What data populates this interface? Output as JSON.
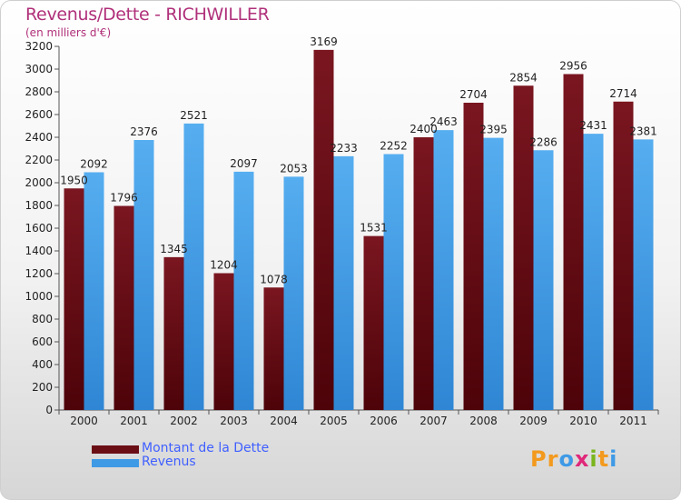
{
  "header": {
    "title": "Revenus/Dette - RICHWILLER",
    "subtitle": "(en milliers d'€)"
  },
  "colors": {
    "dette": "#6b0d15",
    "revenus": "#3f9ae6",
    "title": "#b0307a",
    "legend_text": "#4060ff"
  },
  "legend": {
    "items": [
      {
        "label": "Montant de la Dette",
        "color": "#6b0d15"
      },
      {
        "label": "Revenus",
        "color": "#3f9ae6"
      }
    ]
  },
  "logo": {
    "text": "Proxiti",
    "letter_colors": [
      "#f39a1e",
      "#f39a1e",
      "#3f9ae6",
      "#e0287a",
      "#7ab51d",
      "#f39a1e",
      "#3f9ae6"
    ]
  },
  "chart_data": {
    "type": "bar",
    "categories": [
      "2000",
      "2001",
      "2002",
      "2003",
      "2004",
      "2005",
      "2006",
      "2007",
      "2008",
      "2009",
      "2010",
      "2011"
    ],
    "series": [
      {
        "name": "Montant de la Dette",
        "values": [
          1950,
          1796,
          1345,
          1204,
          1078,
          3169,
          1531,
          2400,
          2704,
          2854,
          2956,
          2714
        ]
      },
      {
        "name": "Revenus",
        "values": [
          2092,
          2376,
          2521,
          2097,
          2053,
          2233,
          2252,
          2463,
          2395,
          2286,
          2431,
          2381
        ]
      }
    ],
    "y_ticks": [
      0,
      200,
      400,
      600,
      800,
      1000,
      1200,
      1400,
      1600,
      1800,
      2000,
      2200,
      2400,
      2600,
      2800,
      3000,
      3200
    ],
    "ylim": [
      0,
      3200
    ],
    "grid": false,
    "legend_position": "bottom-left"
  }
}
